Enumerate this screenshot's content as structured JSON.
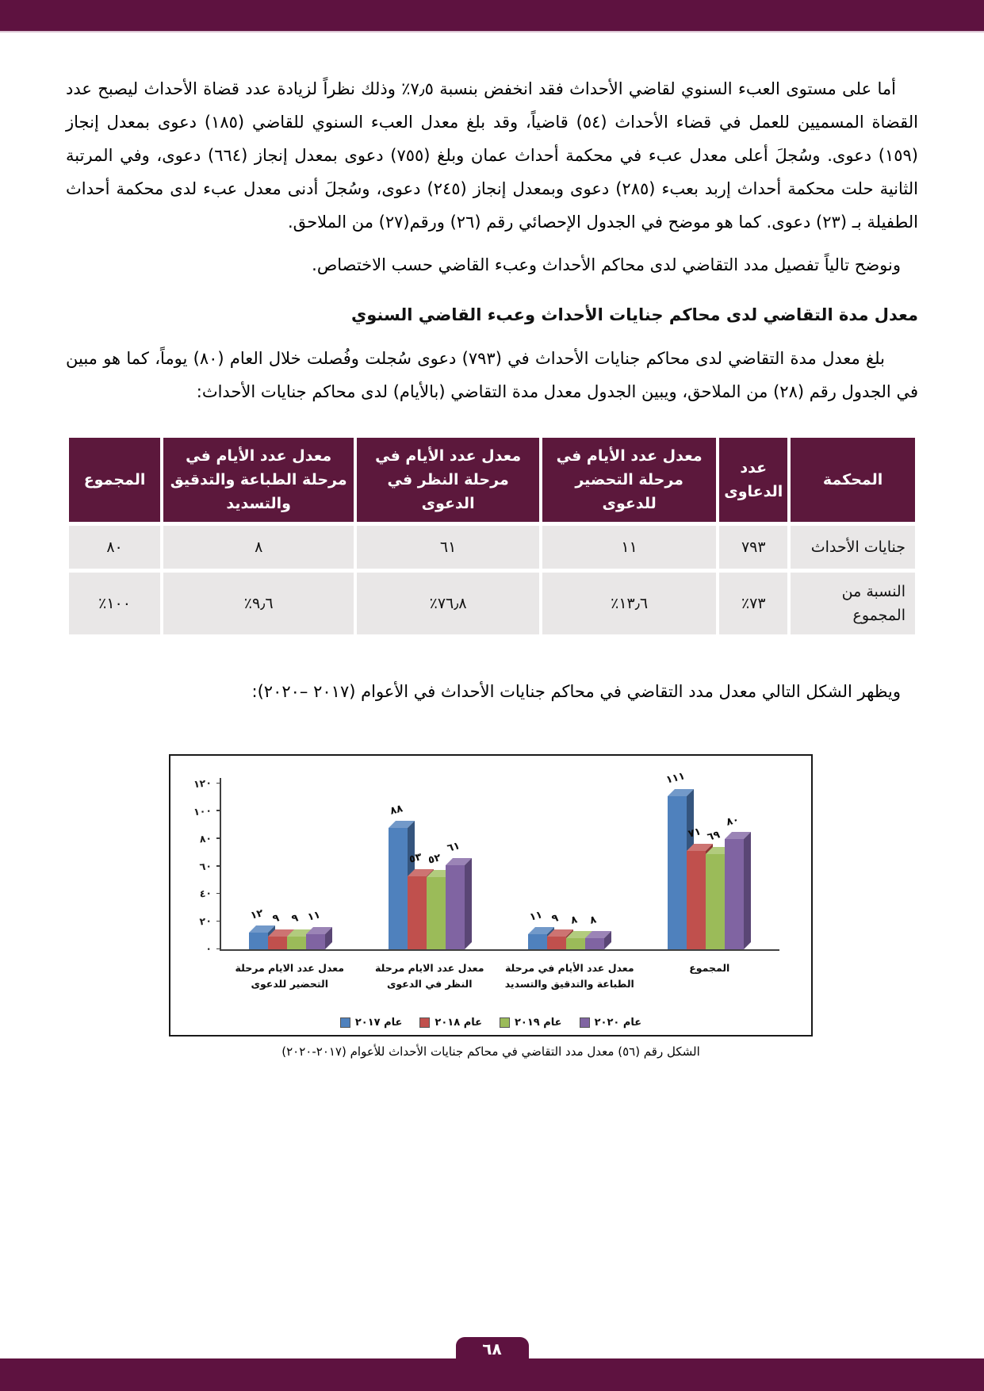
{
  "colors": {
    "maroon_band": "#5E1240",
    "table_header": "#5C183C",
    "table_row_bg": "#E9E7E7"
  },
  "body": {
    "p_intro": "أما على مستوى العبء السنوي لقاضي الأحداث فقد انخفض بنسبة ٧٫٥٪ وذلك نظراً لزيادة عدد قضاة الأحداث ليصبح عدد القضاة المسميين للعمل في قضاء الأحداث (٥٤) قاضياً، وقد بلغ معدل العبء السنوي للقاضي (١٨٥) دعوى بمعدل إنجاز (١٥٩) دعوى. وسُجلَ أعلى معدل عبء في محكمة أحداث عمان وبلغ (٧٥٥) دعوى بمعدل إنجاز (٦٦٤) دعوى، وفي المرتبة الثانية حلت محكمة أحداث إربد بعبء (٢٨٥) دعوى وبمعدل إنجاز (٢٤٥) دعوى، وسُجلَ أدنى معدل عبء لدى محكمة أحداث الطفيلة بـ (٢٣) دعوى. كما هو موضح في الجدول الإحصائي رقم (٢٦) ورقم(٢٧) من الملاحق.",
    "p_transition": "ونوضح تالياً تفصيل مدد التقاضي لدى محاكم الأحداث وعبء القاضي حسب الاختصاص.",
    "section_heading": "معدل مدة التقاضي لدى محاكم جنايات الأحداث وعبء القاضي السنوي",
    "p_section_intro": "بلغ معدل مدة التقاضي لدى محاكم جنايات الأحداث في (٧٩٣) دعوى سُجلت وفُصلت خلال العام (٨٠) يوماً، كما هو مبين في الجدول رقم (٢٨) من الملاحق، ويبين الجدول معدل مدة التقاضي (بالأيام) لدى محاكم جنايات الأحداث:",
    "p_figure_intro": "ويظهر الشكل التالي معدل مدد التقاضي في محاكم جنايات الأحداث في الأعوام (٢٠١٧ –٢٠٢٠):"
  },
  "table": {
    "headers": [
      "المحكمة",
      "عدد الدعاوى",
      "معدل عدد الأيام في مرحلة التحضير للدعوى",
      "معدل عدد الأيام في مرحلة النظر في الدعوى",
      "معدل عدد الأيام في مرحلة الطباعة والتدقيق والتسديد",
      "المجموع"
    ],
    "rows": [
      [
        "جنايات الأحداث",
        "٧٩٣",
        "١١",
        "٦١",
        "٨",
        "٨٠"
      ],
      [
        "النسبة من المجموع",
        "٧٣٪",
        "١٣٫٦٪",
        "٧٦٫٨٪",
        "٩٫٦٪",
        "١٠٠٪"
      ]
    ]
  },
  "chart_data": {
    "type": "bar",
    "title": "",
    "xlabel": "",
    "ylabel": "",
    "ylim": [
      0,
      120
    ],
    "yticks": [
      0,
      20,
      40,
      60,
      80,
      100,
      120
    ],
    "grid": false,
    "legend_position": "bottom",
    "categories": [
      "معدل عدد الايام مرحلة التحضير للدعوى",
      "معدل عدد الايام مرحلة النظر في الدعوى",
      "معدل عدد الأيام في مرحلة الطباعة والتدقيق والتسديد",
      "المجموع"
    ],
    "series": [
      {
        "name": "عام ٢٠١٧",
        "color": "#4F81BD",
        "top": "#7299C9",
        "side": "#35557E",
        "values": [
          12,
          88,
          11,
          111
        ]
      },
      {
        "name": "عام ٢٠١٨",
        "color": "#C0504D",
        "top": "#CD7472",
        "side": "#8C3532",
        "values": [
          9,
          53,
          9,
          71
        ]
      },
      {
        "name": "عام ٢٠١٩",
        "color": "#9BBB59",
        "top": "#B2CB7E",
        "side": "#6F883D",
        "values": [
          9,
          52,
          8,
          69
        ]
      },
      {
        "name": "عام ٢٠٢٠",
        "color": "#8064A2",
        "top": "#9B84B6",
        "side": "#5A4675",
        "values": [
          11,
          61,
          8,
          80
        ]
      }
    ]
  },
  "figure_caption": "الشكل رقم (٥٦) معدل مدد التقاضي في محاكم جنايات الأحداث للأعوام (٢٠١٧-٢٠٢٠)",
  "page_number": "٦٨"
}
